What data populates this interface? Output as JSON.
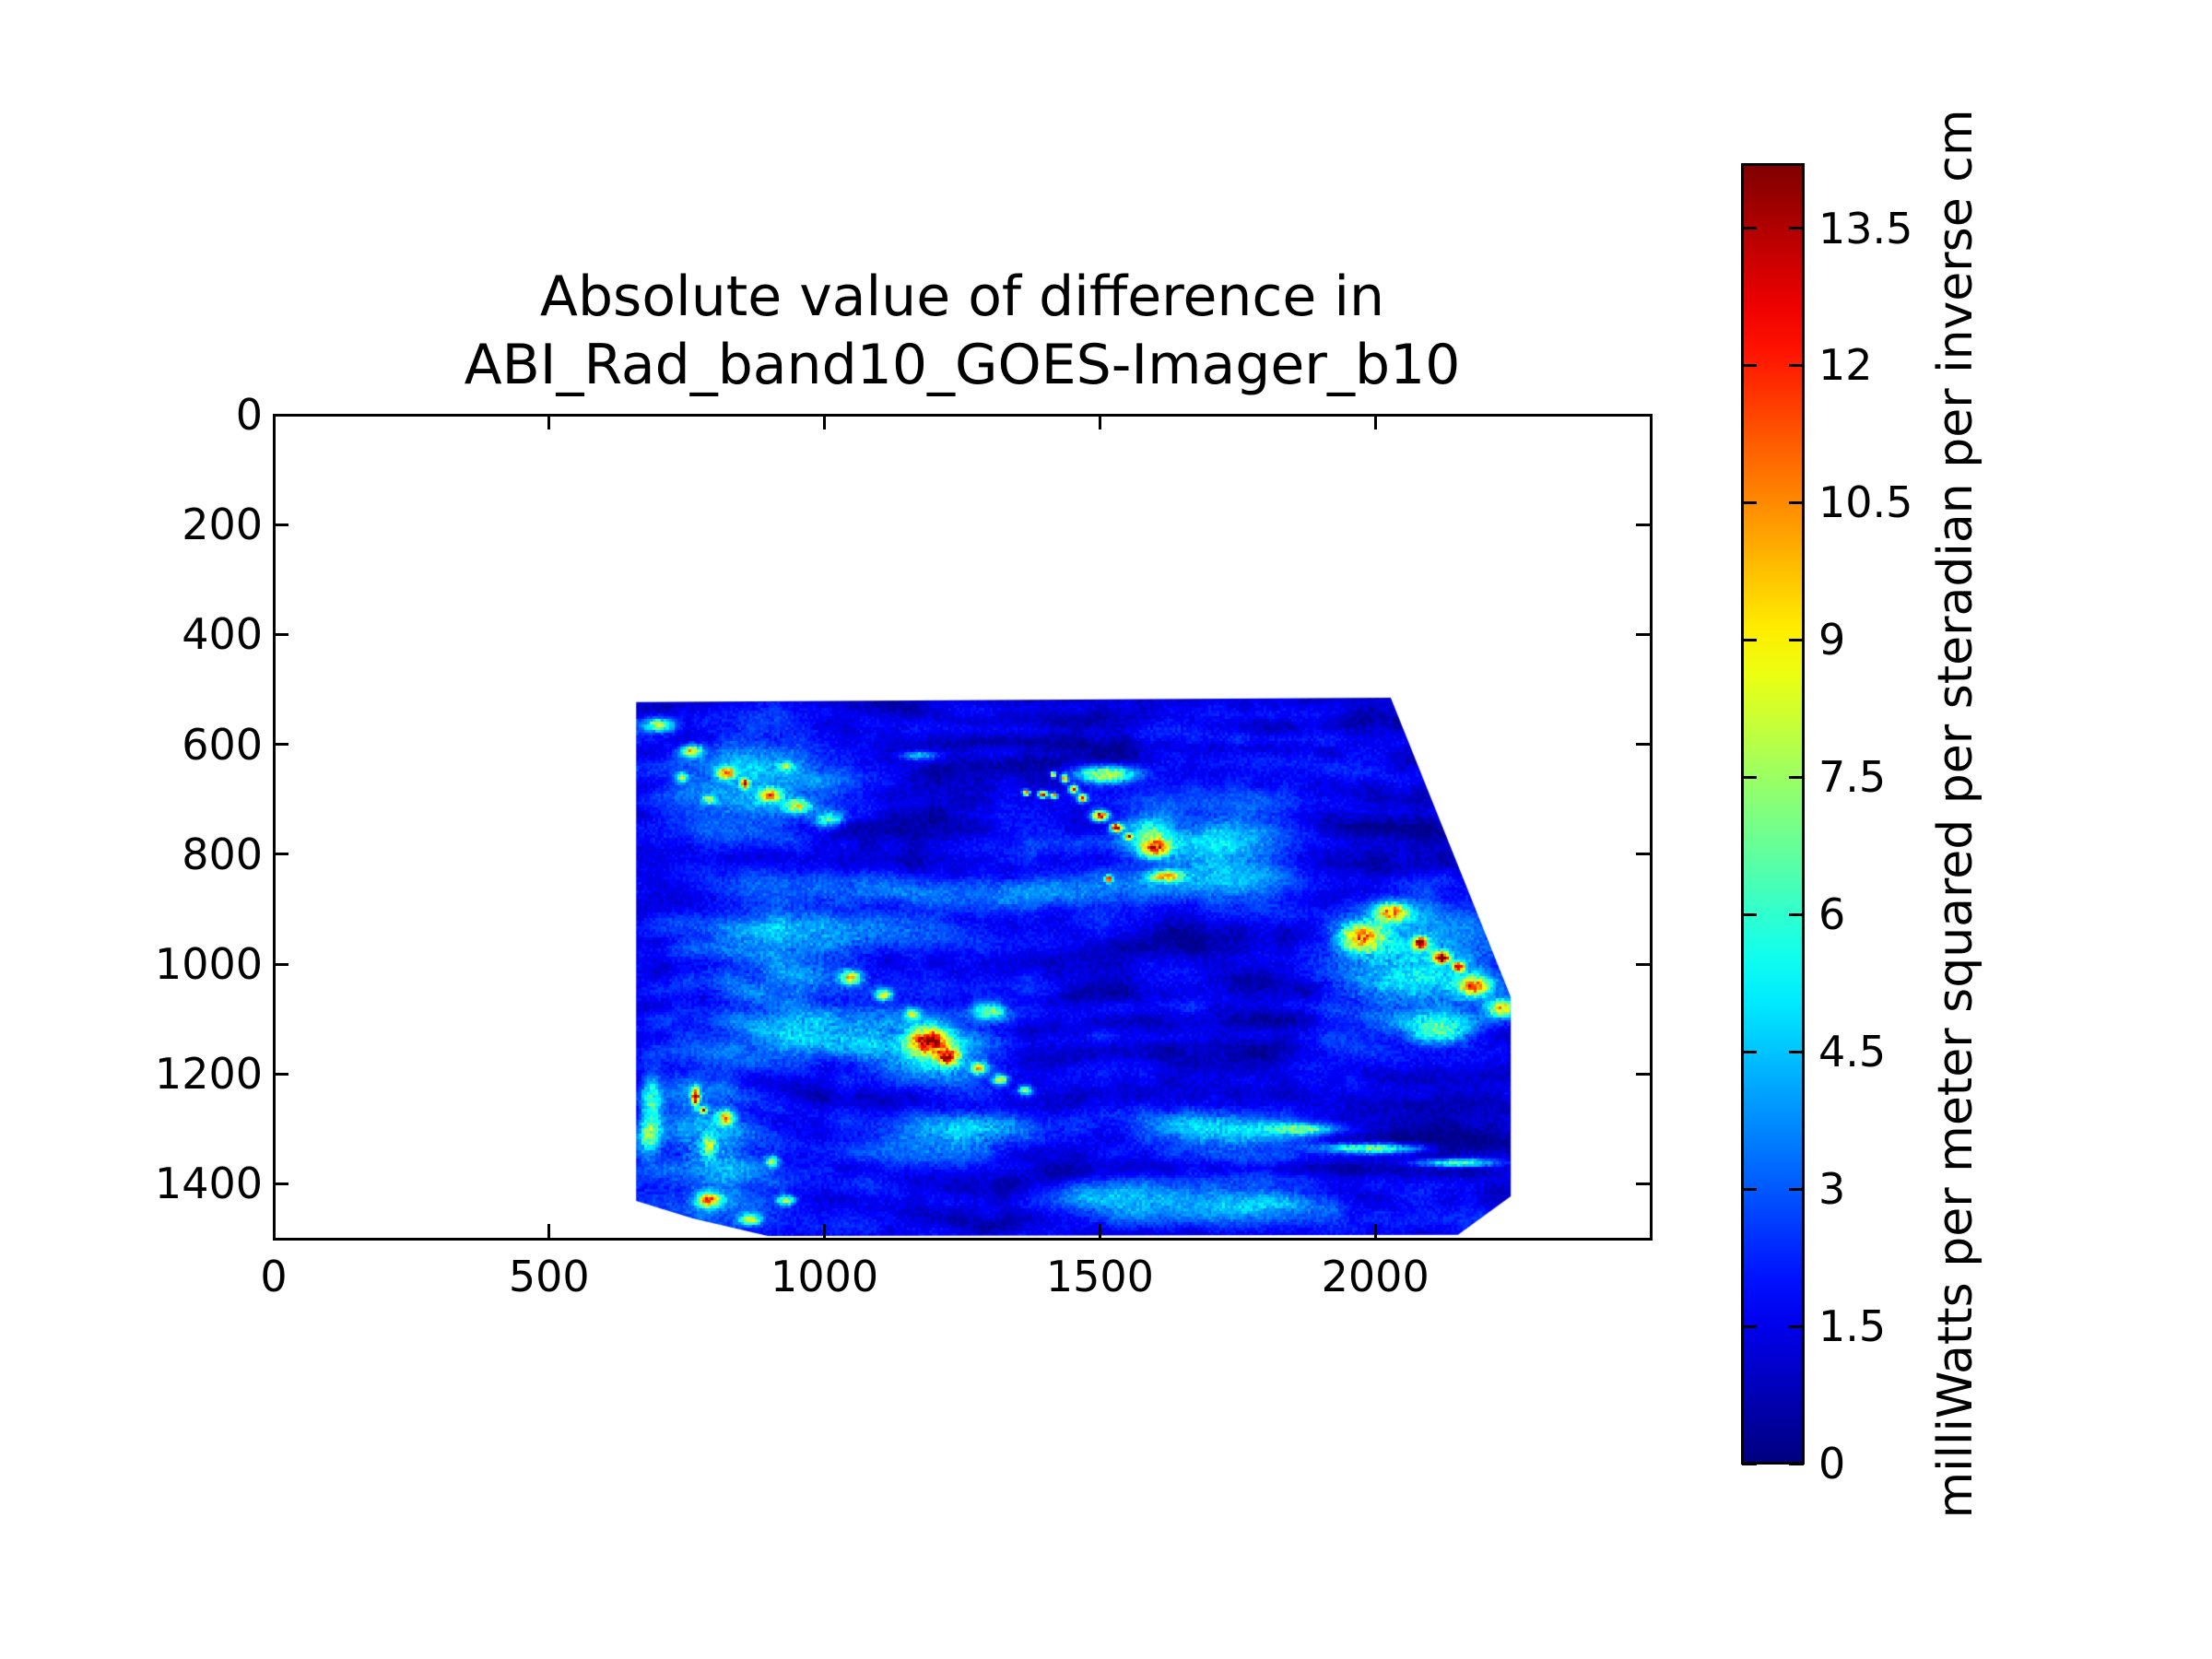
{
  "chart_data": {
    "type": "heatmap",
    "title_lines": [
      "Absolute value of difference in",
      "ABI_Rad_band10_GOES-Imager_b10"
    ],
    "xlabel": "",
    "ylabel": "",
    "xlim": [
      0,
      2500
    ],
    "ylim": [
      0,
      1500
    ],
    "y_axis_inverted": true,
    "grid": false,
    "x_ticks": [
      0,
      500,
      1000,
      1500,
      2000
    ],
    "x_tick_labels": [
      "0",
      "500",
      "1000",
      "1500",
      "2000"
    ],
    "y_ticks": [
      0,
      200,
      400,
      600,
      800,
      1000,
      1200,
      1400
    ],
    "y_tick_labels": [
      "0",
      "200",
      "400",
      "600",
      "800",
      "1000",
      "1200",
      "1400"
    ],
    "colormap": "jet",
    "colorbar": {
      "label": "milliWatts per meter squared per steradian per inverse cm",
      "vmin": 0,
      "vmax": 14.2,
      "ticks": [
        0,
        1.5,
        3,
        4.5,
        6,
        7.5,
        9,
        10.5,
        12,
        13.5
      ],
      "tick_labels": [
        "0",
        "1.5",
        "3",
        "4.5",
        "6",
        "7.5",
        "9",
        "10.5",
        "12",
        "13.5"
      ],
      "position": "right"
    },
    "swath_polygon": [
      [
        658,
        523
      ],
      [
        2028,
        515
      ],
      [
        2246,
        1060
      ],
      [
        2246,
        1423
      ],
      [
        2150,
        1493
      ],
      [
        897,
        1495
      ],
      [
        761,
        1463
      ],
      [
        658,
        1431
      ]
    ],
    "background": {
      "seed": 7,
      "base_level": 1.55,
      "noise_amplitude": 1.4,
      "speckle_amplitude": 0.85,
      "typical_range": [
        0.5,
        3.5
      ]
    },
    "features_xyvrr": [
      [
        1340,
        505,
        0.9,
        680,
        25
      ],
      [
        2050,
        760,
        0.45,
        170,
        110
      ],
      [
        1975,
        550,
        0.5,
        45,
        28
      ],
      [
        1760,
        900,
        0.6,
        150,
        90
      ],
      [
        1450,
        640,
        0.8,
        200,
        80
      ],
      [
        1500,
        630,
        0.8,
        140,
        15
      ],
      [
        2160,
        1330,
        0.6,
        110,
        80
      ],
      [
        1380,
        1450,
        0.6,
        160,
        60
      ],
      [
        1150,
        1250,
        0.75,
        130,
        45
      ],
      [
        1420,
        1370,
        0.7,
        150,
        45
      ],
      [
        700,
        565,
        7.6,
        26,
        12
      ],
      [
        760,
        612,
        8.6,
        18,
        10
      ],
      [
        822,
        652,
        9.6,
        15,
        10
      ],
      [
        856,
        672,
        11.6,
        8,
        8
      ],
      [
        902,
        692,
        8.2,
        20,
        12
      ],
      [
        952,
        712,
        7.0,
        22,
        12
      ],
      [
        1010,
        737,
        6.0,
        26,
        14
      ],
      [
        790,
        700,
        6.5,
        12,
        8
      ],
      [
        740,
        660,
        7.0,
        10,
        8
      ],
      [
        930,
        640,
        5.5,
        14,
        8
      ],
      [
        880,
        670,
        4.0,
        150,
        95
      ],
      [
        1170,
        620,
        5.2,
        30,
        8
      ],
      [
        1366,
        688,
        12.8,
        6,
        5
      ],
      [
        1397,
        691,
        13.4,
        8,
        6
      ],
      [
        1417,
        694,
        12.2,
        6,
        5
      ],
      [
        1415,
        655,
        10.5,
        5,
        5
      ],
      [
        1436,
        663,
        10.8,
        6,
        7
      ],
      [
        1452,
        682,
        11.5,
        8,
        7
      ],
      [
        1468,
        698,
        12.0,
        8,
        7
      ],
      [
        1500,
        730,
        13.8,
        14,
        9
      ],
      [
        1530,
        752,
        13.5,
        10,
        7
      ],
      [
        1552,
        768,
        11.0,
        6,
        5
      ],
      [
        1510,
        655,
        8.8,
        55,
        16
      ],
      [
        1590,
        760,
        5.5,
        45,
        35
      ],
      [
        1600,
        790,
        9.2,
        26,
        16
      ],
      [
        1620,
        840,
        8.6,
        30,
        10
      ],
      [
        1516,
        845,
        11.3,
        6,
        6
      ],
      [
        1730,
        800,
        4.6,
        120,
        90
      ],
      [
        1000,
        940,
        3.5,
        250,
        30
      ],
      [
        1300,
        870,
        3.4,
        500,
        35
      ],
      [
        940,
        1020,
        3.8,
        170,
        90
      ],
      [
        1048,
        1025,
        9.0,
        18,
        12
      ],
      [
        1107,
        1056,
        8.2,
        14,
        10
      ],
      [
        1160,
        1090,
        7.5,
        12,
        9
      ],
      [
        1190,
        1140,
        10.8,
        32,
        24
      ],
      [
        1225,
        1170,
        10.0,
        20,
        15
      ],
      [
        1280,
        1190,
        8.0,
        14,
        10
      ],
      [
        1320,
        1210,
        8.4,
        12,
        9
      ],
      [
        1365,
        1230,
        7.2,
        12,
        8
      ],
      [
        1300,
        1085,
        6.4,
        30,
        16
      ],
      [
        1200,
        1170,
        4.6,
        120,
        70
      ],
      [
        1000,
        1130,
        4.4,
        130,
        45
      ],
      [
        1260,
        1310,
        4.6,
        150,
        50
      ],
      [
        1520,
        1430,
        4.4,
        150,
        40
      ],
      [
        1800,
        1440,
        4.2,
        140,
        35
      ],
      [
        1700,
        1300,
        4.5,
        150,
        40
      ],
      [
        2060,
        1000,
        5.2,
        150,
        110
      ],
      [
        1975,
        950,
        9.4,
        40,
        26
      ],
      [
        2030,
        905,
        8.6,
        30,
        18
      ],
      [
        2082,
        962,
        13.2,
        12,
        10
      ],
      [
        2120,
        988,
        13.6,
        14,
        10
      ],
      [
        2152,
        1005,
        12.0,
        10,
        8
      ],
      [
        2180,
        1040,
        9.0,
        28,
        18
      ],
      [
        2230,
        1080,
        8.6,
        26,
        16
      ],
      [
        2240,
        1000,
        12.5,
        8,
        8
      ],
      [
        2120,
        1120,
        6.0,
        60,
        30
      ],
      [
        1990,
        1335,
        7.8,
        90,
        9
      ],
      [
        2150,
        1362,
        7.4,
        70,
        8
      ],
      [
        1870,
        1300,
        6.0,
        60,
        10
      ],
      [
        766,
        1242,
        12.5,
        7,
        16
      ],
      [
        780,
        1266,
        11.5,
        6,
        6
      ],
      [
        820,
        1280,
        8.8,
        14,
        12
      ],
      [
        790,
        1330,
        6.2,
        14,
        18
      ],
      [
        790,
        1430,
        9.8,
        20,
        12
      ],
      [
        865,
        1465,
        8.0,
        18,
        10
      ],
      [
        905,
        1360,
        7.0,
        12,
        10
      ],
      [
        930,
        1430,
        7.6,
        16,
        9
      ],
      [
        800,
        1330,
        4.4,
        110,
        130
      ],
      [
        680,
        1315,
        6.0,
        20,
        35
      ],
      [
        685,
        1250,
        5.5,
        18,
        50
      ]
    ]
  }
}
